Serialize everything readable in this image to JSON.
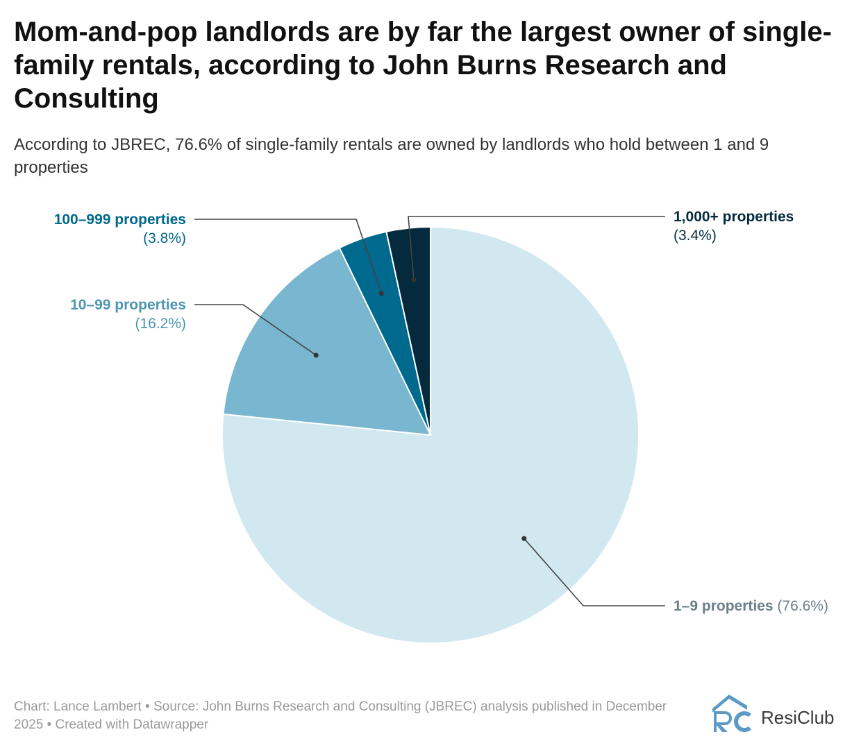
{
  "title": "Mom-and-pop landlords are by far the largest owner of single-family rentals, according to John Burns Research and Consulting",
  "subtitle": "According to JBREC, 76.6% of single-family rentals are owned by landlords who hold between 1 and 9 properties",
  "chart_data": {
    "type": "pie",
    "title": "Mom-and-pop landlords are by far the largest owner of single-family rentals, according to John Burns Research and Consulting",
    "slices": [
      {
        "label": "1–9 properties",
        "value": 76.6,
        "display": "(76.6%)",
        "color": "#d1e8f1",
        "label_color": "#6b7f88"
      },
      {
        "label": "10–99 properties",
        "value": 16.2,
        "display": "(16.2%)",
        "color": "#79b6d0",
        "label_color": "#4e94b2"
      },
      {
        "label": "100–999 properties",
        "value": 3.8,
        "display": "(3.8%)",
        "color": "#006a8e",
        "label_color": "#00688b"
      },
      {
        "label": "1,000+ properties",
        "value": 3.4,
        "display": "(3.4%)",
        "color": "#062a3d",
        "label_color": "#062a3d"
      }
    ]
  },
  "footer": {
    "text": "Chart: Lance Lambert • Source: John Burns Research and Consulting (JBREC) analysis published in December 2025 • Created with Datawrapper"
  },
  "brand": {
    "name": "ResiClub",
    "logo_text": "RC",
    "color": "#5b9ac6"
  }
}
